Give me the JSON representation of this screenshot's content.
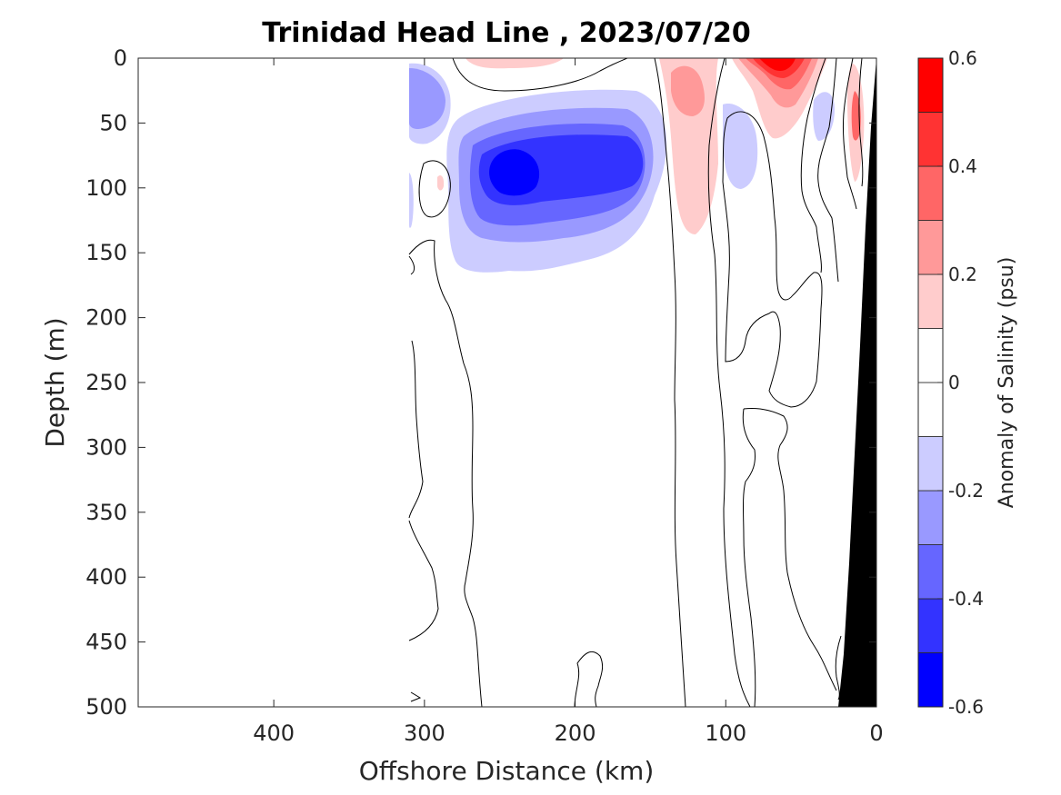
{
  "chart_data": {
    "type": "contour",
    "title": "Trinidad Head Line , 2023/07/20",
    "xlabel": "Offshore Distance (km)",
    "ylabel": "Depth (m)",
    "xlim": [
      490,
      0
    ],
    "ylim": [
      500,
      0
    ],
    "x_reversed": true,
    "y_reversed": true,
    "x_ticks": [
      400,
      300,
      200,
      100,
      0
    ],
    "y_ticks": [
      0,
      50,
      100,
      150,
      200,
      250,
      300,
      350,
      400,
      450,
      500
    ],
    "colorbar": {
      "label": "Anomaly of Salinity (psu)",
      "range": [
        -0.6,
        0.6
      ],
      "levels": [
        -0.6,
        -0.5,
        -0.4,
        -0.3,
        -0.2,
        -0.1,
        0,
        0.1,
        0.2,
        0.3,
        0.4,
        0.5,
        0.6
      ],
      "tick_values": [
        0.6,
        0.4,
        0.2,
        0,
        -0.2,
        -0.4,
        -0.6
      ],
      "tick_labels": [
        "0.6",
        "0.4",
        "0.2",
        "0",
        "-0.2",
        "-0.4",
        "-0.6"
      ],
      "colors": [
        "#0000ff",
        "#3333ff",
        "#6666ff",
        "#9999ff",
        "#ccccff",
        "#ffffff",
        "#ffffff",
        "#ffcccc",
        "#ff9999",
        "#ff6666",
        "#ff3333",
        "#ff0000"
      ]
    },
    "features": [
      {
        "name": "negative anomaly core",
        "x_km": 240,
        "depth_m": 90,
        "value": -0.5
      },
      {
        "name": "negative anomaly band",
        "x_range_km": [
          290,
          150
        ],
        "depth_range_m": [
          50,
          160
        ],
        "value": -0.2
      },
      {
        "name": "negative anomaly patch",
        "x_km": 295,
        "depth_m": 40,
        "value": -0.3
      },
      {
        "name": "positive anomaly surface",
        "x_km": 65,
        "depth_m": 5,
        "value": 0.5
      },
      {
        "name": "positive anomaly patch",
        "x_km": 125,
        "depth_m": 30,
        "value": 0.3
      },
      {
        "name": "positive anomaly nearshore",
        "x_km": 15,
        "depth_m": 40,
        "value": 0.3
      },
      {
        "name": "positive anomaly surface west",
        "x_km": 235,
        "depth_m": 3,
        "value": 0.1
      }
    ],
    "bathymetry_color": "#000000"
  }
}
